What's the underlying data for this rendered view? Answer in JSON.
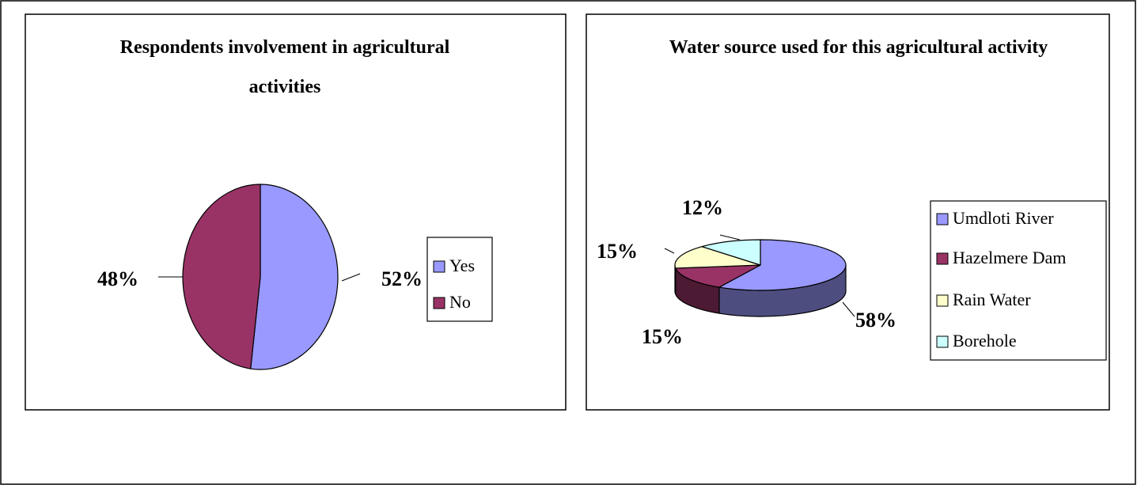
{
  "chart_data": [
    {
      "type": "pie",
      "title": "Respondents involvement in agricultural activities",
      "categories": [
        "Yes",
        "No"
      ],
      "values": [
        52,
        48
      ],
      "value_labels": [
        "52%",
        "48%"
      ],
      "colors": [
        "#9999ff",
        "#993366"
      ],
      "legend": "right"
    },
    {
      "type": "pie3d",
      "title": "Water source used for this agricultural activity",
      "categories": [
        "Umdloti River",
        "Hazelmere Dam",
        "Rain Water",
        "Borehole"
      ],
      "values": [
        58,
        15,
        15,
        12
      ],
      "value_labels": [
        "58%",
        "15%",
        "15%",
        "12%"
      ],
      "colors": [
        "#9999ff",
        "#993366",
        "#ffffcc",
        "#ccffff"
      ],
      "legend": "right"
    }
  ]
}
